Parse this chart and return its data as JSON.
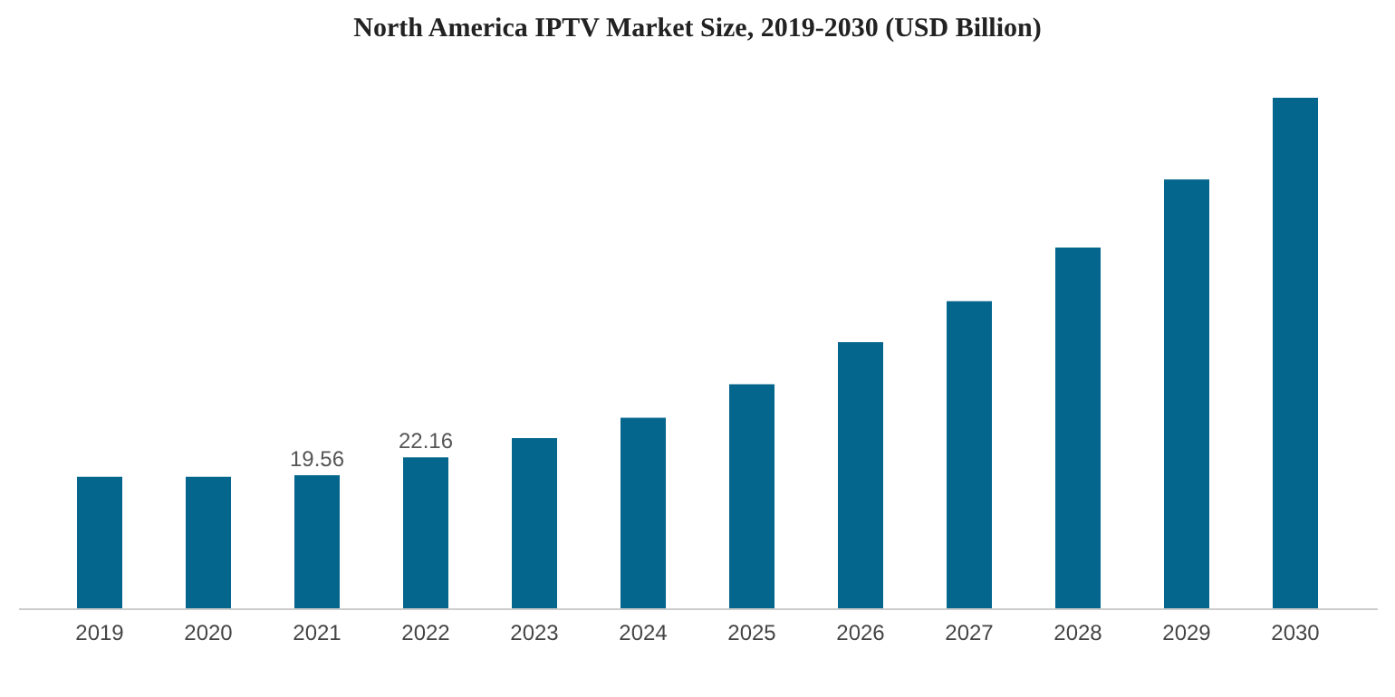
{
  "chart_data": {
    "type": "bar",
    "title": "North America IPTV Market Size, 2019-2030 (USD Billion)",
    "categories": [
      "2019",
      "2020",
      "2021",
      "2022",
      "2023",
      "2024",
      "2025",
      "2026",
      "2027",
      "2028",
      "2029",
      "2030"
    ],
    "values": [
      19.3,
      19.3,
      19.56,
      22.16,
      25.0,
      28.0,
      32.9,
      39.1,
      45.1,
      53.0,
      63.0,
      75.0
    ],
    "value_labels": [
      null,
      null,
      "19.56",
      "22.16",
      null,
      null,
      null,
      null,
      null,
      null,
      null,
      null
    ],
    "color": "#05668d",
    "tick_labels": "x",
    "grid": false
  }
}
